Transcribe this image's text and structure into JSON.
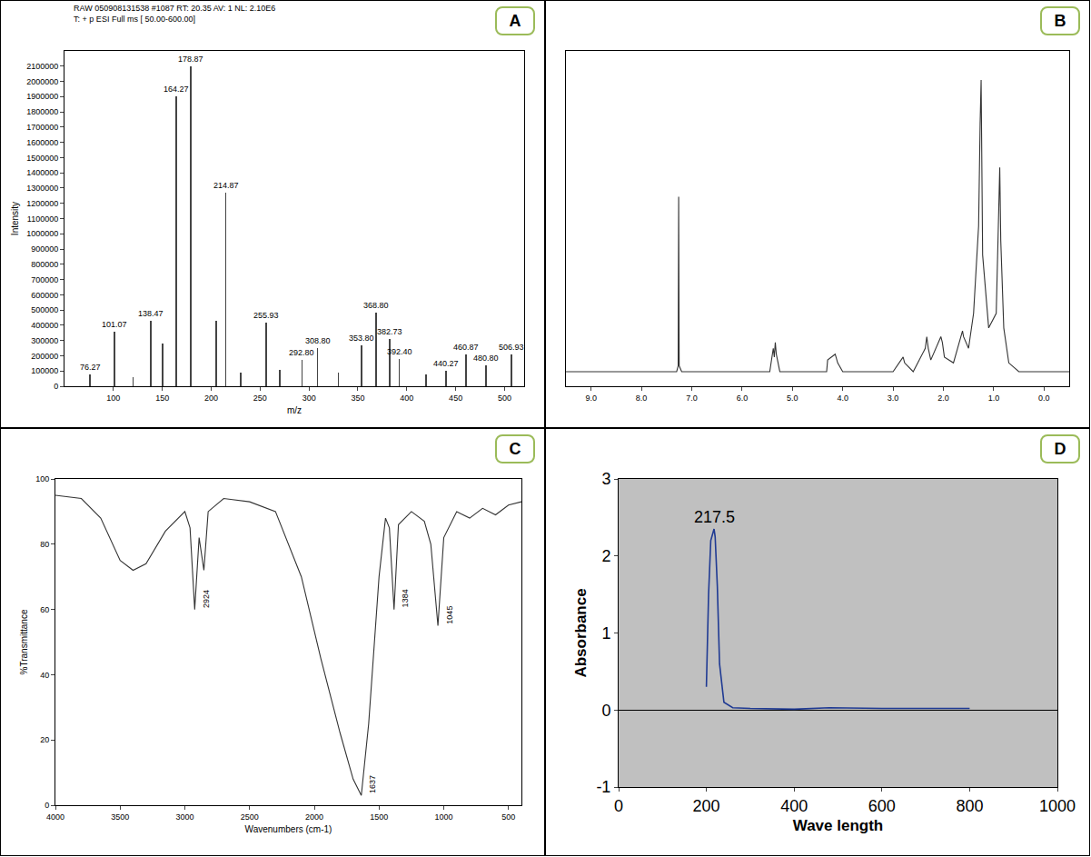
{
  "chart_data": [
    {
      "label": "A",
      "type": "bar",
      "title": "RAW 050908131538 #1087 RT: 20.35 AV: 1 NL: 2.10E6",
      "subtitle": "T: + p ESI Full ms [ 50.00-600.00]",
      "x_label": "m/z",
      "y_label": "Intensity",
      "x": [
        76.27,
        101.07,
        120,
        138.47,
        150,
        164.27,
        178.87,
        205,
        214.87,
        230,
        255.93,
        270,
        292.8,
        308.8,
        330,
        353.8,
        368.8,
        382.73,
        392.4,
        420,
        440.27,
        460.87,
        480.8,
        506.93
      ],
      "values": [
        80000,
        360000,
        60000,
        430000,
        280000,
        1900000,
        2100000,
        430000,
        1270000,
        90000,
        420000,
        110000,
        170000,
        250000,
        90000,
        270000,
        480000,
        310000,
        180000,
        80000,
        100000,
        210000,
        140000,
        210000
      ],
      "color": "#444444",
      "xlim": [
        50,
        520
      ],
      "xticks": [
        100,
        150,
        200,
        250,
        300,
        350,
        400,
        450,
        500
      ],
      "ylim": [
        0,
        2200000
      ],
      "yticks": [
        0,
        100000,
        200000,
        300000,
        400000,
        500000,
        600000,
        700000,
        800000,
        900000,
        1000000,
        1100000,
        1200000,
        1300000,
        1400000,
        1500000,
        1600000,
        1700000,
        1800000,
        1900000,
        2000000,
        2100000
      ],
      "grid": false,
      "annotations": [
        {
          "text": "76.27",
          "x": 76.27,
          "y": 80000
        },
        {
          "text": "101.07",
          "x": 101.07,
          "y": 360000
        },
        {
          "text": "138.47",
          "x": 138.47,
          "y": 430000
        },
        {
          "text": "164.27",
          "x": 164.27,
          "y": 1900000
        },
        {
          "text": "178.87",
          "x": 178.87,
          "y": 2100000
        },
        {
          "text": "214.87",
          "x": 214.87,
          "y": 1270000
        },
        {
          "text": "255.93",
          "x": 255.93,
          "y": 420000
        },
        {
          "text": "292.80",
          "x": 292.8,
          "y": 170000
        },
        {
          "text": "308.80",
          "x": 308.8,
          "y": 250000
        },
        {
          "text": "353.80",
          "x": 353.8,
          "y": 270000
        },
        {
          "text": "368.80",
          "x": 368.8,
          "y": 480000
        },
        {
          "text": "382.73",
          "x": 382.73,
          "y": 310000
        },
        {
          "text": "392.40",
          "x": 392.4,
          "y": 180000
        },
        {
          "text": "440.27",
          "x": 440.27,
          "y": 100000
        },
        {
          "text": "460.87",
          "x": 460.87,
          "y": 210000
        },
        {
          "text": "480.80",
          "x": 480.8,
          "y": 140000
        },
        {
          "text": "506.93",
          "x": 506.93,
          "y": 210000
        }
      ]
    },
    {
      "label": "B",
      "type": "line",
      "x": [
        9.5,
        7.3,
        7.27,
        7.26,
        7.25,
        7.2,
        5.45,
        5.38,
        5.36,
        5.34,
        5.32,
        5.3,
        5.25,
        4.32,
        4.3,
        4.15,
        4.12,
        4.1,
        4.0,
        3.5,
        3.0,
        2.8,
        2.77,
        2.6,
        2.36,
        2.33,
        2.3,
        2.25,
        2.05,
        2.02,
        1.98,
        1.8,
        1.62,
        1.6,
        1.5,
        1.4,
        1.3,
        1.27,
        1.25,
        1.22,
        1.1,
        0.95,
        0.9,
        0.88,
        0.86,
        0.8,
        0.7,
        0.5,
        -0.5
      ],
      "values": [
        0,
        0,
        2,
        60,
        2,
        0,
        0,
        8,
        5,
        10,
        6,
        4,
        0,
        0,
        4,
        6,
        4,
        3,
        0,
        0,
        0,
        5,
        3,
        0,
        8,
        12,
        8,
        4,
        12,
        10,
        5,
        3,
        14,
        12,
        8,
        20,
        50,
        85,
        100,
        40,
        15,
        20,
        55,
        70,
        45,
        15,
        3,
        0,
        0
      ],
      "color": "#333333",
      "xlim": [
        9.5,
        -0.5
      ],
      "xticks": [
        {
          "value": 9,
          "label": "9.0"
        },
        {
          "value": 8,
          "label": "8.0"
        },
        {
          "value": 7,
          "label": "7.0"
        },
        {
          "value": 6,
          "label": "6.0"
        },
        {
          "value": 5,
          "label": "5.0"
        },
        {
          "value": 4,
          "label": "4.0"
        },
        {
          "value": 3,
          "label": "3.0"
        },
        {
          "value": 2,
          "label": "2.0"
        },
        {
          "value": 1,
          "label": "1.0"
        },
        {
          "value": 0,
          "label": "0.0"
        }
      ],
      "ylim": [
        -5,
        110
      ],
      "tick_labels": "x",
      "grid": false
    },
    {
      "label": "C",
      "type": "line",
      "x_label": "Wavenumbers (cm-1)",
      "y_label": "%Transmittance",
      "x": [
        4000,
        3800,
        3650,
        3500,
        3400,
        3300,
        3150,
        3000,
        2960,
        2924,
        2890,
        2853,
        2820,
        2700,
        2500,
        2300,
        2100,
        1950,
        1800,
        1700,
        1637,
        1580,
        1500,
        1450,
        1420,
        1384,
        1350,
        1250,
        1150,
        1100,
        1045,
        1000,
        900,
        800,
        700,
        600,
        500,
        400
      ],
      "values": [
        95,
        94,
        88,
        75,
        72,
        74,
        84,
        90,
        85,
        60,
        82,
        72,
        90,
        94,
        93,
        90,
        70,
        45,
        22,
        8,
        3,
        25,
        70,
        88,
        85,
        60,
        86,
        90,
        87,
        80,
        55,
        82,
        90,
        88,
        91,
        89,
        92,
        93
      ],
      "color": "#333333",
      "xlim": [
        4000,
        400
      ],
      "xticks": [
        4000,
        3500,
        3000,
        2500,
        2000,
        1500,
        1000,
        500
      ],
      "ylim": [
        0,
        100
      ],
      "yticks": [
        0,
        20,
        40,
        60,
        80,
        100
      ],
      "grid": false,
      "annotations": [
        {
          "text": "2924",
          "x": 2924,
          "y": 60
        },
        {
          "text": "1637",
          "x": 1637,
          "y": 3
        },
        {
          "text": "1384",
          "x": 1384,
          "y": 60
        },
        {
          "text": "1045",
          "x": 1045,
          "y": 55
        }
      ]
    },
    {
      "label": "D",
      "type": "line",
      "x_label": "Wave length",
      "y_label": "Absorbance",
      "x": [
        200,
        205,
        210,
        215,
        217.5,
        220,
        225,
        230,
        240,
        260,
        300,
        400,
        480,
        600,
        700,
        800
      ],
      "values": [
        0.3,
        1.5,
        2.2,
        2.3,
        2.35,
        2.25,
        1.6,
        0.6,
        0.1,
        0.03,
        0.02,
        0.01,
        0.03,
        0.02,
        0.02,
        0.02
      ],
      "color": "#1f3a93",
      "xlim": [
        0,
        1000
      ],
      "xticks": [
        0,
        200,
        400,
        600,
        800,
        1000
      ],
      "ylim": [
        -1,
        3
      ],
      "yticks": [
        -1,
        0,
        1,
        2,
        3
      ],
      "grid": false,
      "annotations": [
        {
          "text": "217.5",
          "x": 217.5,
          "y": 2.35
        }
      ]
    }
  ]
}
